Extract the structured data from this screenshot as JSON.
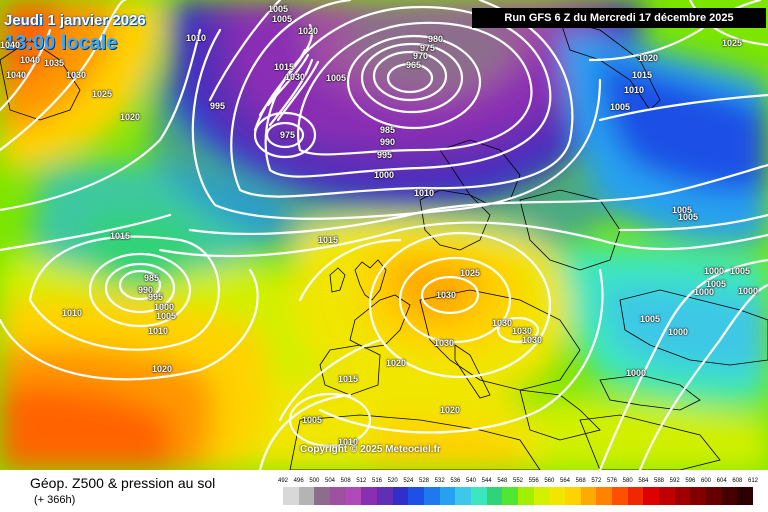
{
  "header": {
    "valid_date": "Jeudi 1 janvier 2026",
    "local_time": "13:00 locale",
    "run_info": "Run GFS 6 Z du Mercredi 17 décembre 2025"
  },
  "map": {
    "copyright": "Copyright © 2025 Meteociel.fr",
    "pressure_labels": [
      {
        "id": "p1",
        "v": "1005"
      },
      {
        "id": "p2",
        "v": "1005"
      },
      {
        "id": "p3",
        "v": "1010"
      },
      {
        "id": "p4",
        "v": "1040"
      },
      {
        "id": "p5",
        "v": "1040"
      },
      {
        "id": "p6",
        "v": "1035"
      },
      {
        "id": "p7",
        "v": "1040"
      },
      {
        "id": "p8",
        "v": "1030"
      },
      {
        "id": "p9",
        "v": "1025"
      },
      {
        "id": "p10",
        "v": "1020"
      },
      {
        "id": "p11",
        "v": "995"
      },
      {
        "id": "p12",
        "v": "1020"
      },
      {
        "id": "p13",
        "v": "1015"
      },
      {
        "id": "p14",
        "v": "1030"
      },
      {
        "id": "p15",
        "v": "1005"
      },
      {
        "id": "p16",
        "v": "980"
      },
      {
        "id": "p17",
        "v": "975"
      },
      {
        "id": "p18",
        "v": "970"
      },
      {
        "id": "p19",
        "v": "965"
      },
      {
        "id": "p20",
        "v": "975"
      },
      {
        "id": "p21",
        "v": "985"
      },
      {
        "id": "p22",
        "v": "990"
      },
      {
        "id": "p23",
        "v": "995"
      },
      {
        "id": "p24",
        "v": "1000"
      },
      {
        "id": "p25",
        "v": "1010"
      },
      {
        "id": "p26",
        "v": "1015"
      },
      {
        "id": "p27",
        "v": "1015"
      },
      {
        "id": "p28",
        "v": "985"
      },
      {
        "id": "p29",
        "v": "990"
      },
      {
        "id": "p30",
        "v": "995"
      },
      {
        "id": "p31",
        "v": "1000"
      },
      {
        "id": "p32",
        "v": "1005"
      },
      {
        "id": "p33",
        "v": "1010"
      },
      {
        "id": "p34",
        "v": "1010"
      },
      {
        "id": "p35",
        "v": "1020"
      },
      {
        "id": "p36",
        "v": "1025"
      },
      {
        "id": "p37",
        "v": "1030"
      },
      {
        "id": "p38",
        "v": "1030"
      },
      {
        "id": "p39",
        "v": "1030"
      },
      {
        "id": "p40",
        "v": "1030"
      },
      {
        "id": "p41",
        "v": "1030"
      },
      {
        "id": "p42",
        "v": "1020"
      },
      {
        "id": "p43",
        "v": "1015"
      },
      {
        "id": "p44",
        "v": "1020"
      },
      {
        "id": "p45",
        "v": "1005"
      },
      {
        "id": "p46",
        "v": "1010"
      },
      {
        "id": "p47",
        "v": "1025"
      },
      {
        "id": "p48",
        "v": "1020"
      },
      {
        "id": "p49",
        "v": "1015"
      },
      {
        "id": "p50",
        "v": "1010"
      },
      {
        "id": "p51",
        "v": "1005"
      },
      {
        "id": "p52",
        "v": "1005"
      },
      {
        "id": "p53",
        "v": "1005"
      },
      {
        "id": "p54",
        "v": "1000"
      },
      {
        "id": "p55",
        "v": "1005"
      },
      {
        "id": "p56",
        "v": "1005"
      },
      {
        "id": "p57",
        "v": "1000"
      },
      {
        "id": "p58",
        "v": "1000"
      }
    ]
  },
  "footer": {
    "title": "Géop. Z500 & pression au sol",
    "forecast_hour": "(+ 366h)"
  },
  "legend": {
    "unit_scale": "Z500 (dam)",
    "values": [
      "492",
      "496",
      "500",
      "504",
      "508",
      "512",
      "516",
      "520",
      "524",
      "528",
      "532",
      "536",
      "540",
      "544",
      "548",
      "552",
      "556",
      "560",
      "564",
      "568",
      "572",
      "576",
      "580",
      "584",
      "588",
      "592",
      "596",
      "600",
      "604",
      "608",
      "612"
    ],
    "colors": [
      "#d8d8d8",
      "#b4b4b4",
      "#8c6e8c",
      "#a050a0",
      "#b04ab8",
      "#8a2eb4",
      "#5f2fb4",
      "#3030c8",
      "#1e50e6",
      "#1e78f0",
      "#28a0f0",
      "#3cc8e6",
      "#3ce6be",
      "#32d278",
      "#50e632",
      "#a0f000",
      "#d2f000",
      "#f0e600",
      "#ffd200",
      "#ffaa00",
      "#ff8200",
      "#ff5000",
      "#f02800",
      "#dc0000",
      "#be0000",
      "#a00000",
      "#820000",
      "#640000",
      "#460000",
      "#2a0000"
    ]
  }
}
